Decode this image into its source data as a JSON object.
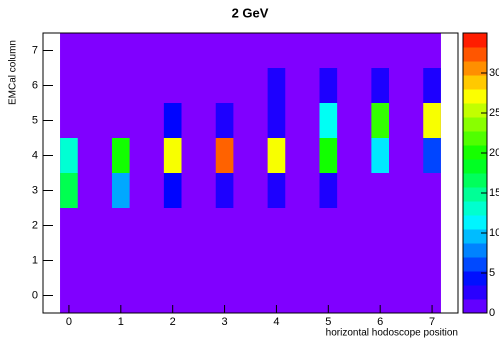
{
  "chart_data": {
    "type": "heatmap",
    "title": "2 GeV",
    "x_label": "horizontal hodoscope position",
    "y_label": "EMCal column",
    "x": [
      0,
      1,
      2,
      3,
      4,
      5,
      6,
      7
    ],
    "y": [
      0,
      1,
      2,
      3,
      4,
      5,
      6,
      7
    ],
    "values": [
      [
        0,
        0,
        0,
        0,
        0,
        0,
        0,
        0
      ],
      [
        0,
        0,
        0,
        0,
        0,
        0,
        0,
        0
      ],
      [
        0,
        0,
        0,
        0,
        0,
        0,
        0,
        0
      ],
      [
        17,
        9,
        4,
        3,
        3,
        3,
        0,
        0
      ],
      [
        13,
        20,
        27,
        32,
        27,
        20,
        11,
        6
      ],
      [
        0,
        0,
        4,
        3,
        3,
        12,
        21,
        27
      ],
      [
        0,
        0,
        0,
        0,
        3,
        3,
        3,
        3
      ],
      [
        0,
        0,
        0,
        0,
        0,
        0,
        0,
        0
      ]
    ],
    "xlim": [
      -0.5,
      7.5
    ],
    "xticks": [
      0,
      1,
      2,
      3,
      4,
      5,
      6,
      7
    ],
    "ylim": [
      -0.5,
      7.5
    ],
    "yticks": [
      0,
      1,
      2,
      3,
      4,
      5,
      6,
      7
    ],
    "zlim": [
      0,
      35
    ],
    "zticks": [
      0,
      5,
      10,
      15,
      20,
      25,
      30
    ],
    "colormap": "rainbow"
  }
}
